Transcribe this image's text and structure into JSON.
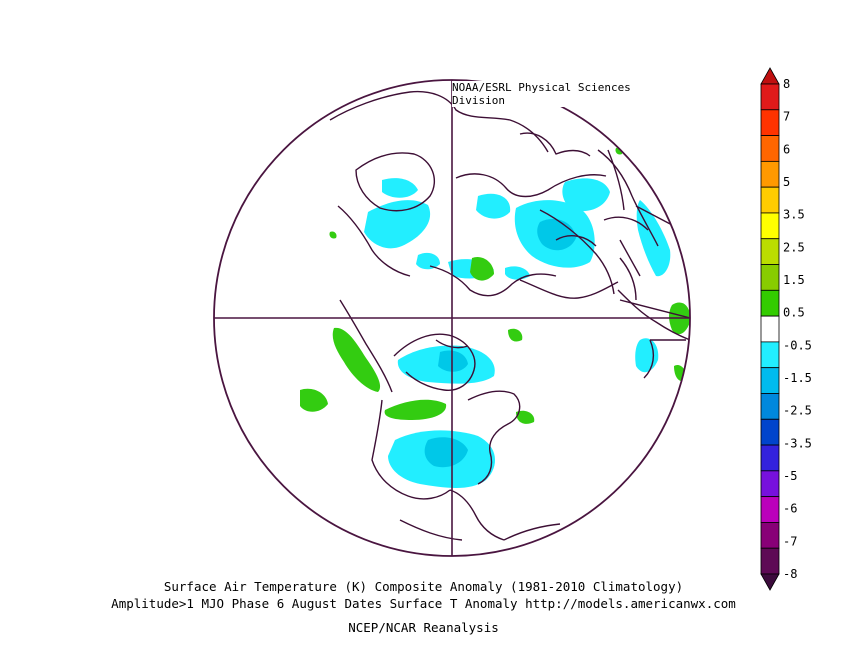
{
  "header": {
    "credit": "NOAA/ESRL Physical Sciences Division"
  },
  "footer": {
    "line1": "Surface Air Temperature (K) Composite Anomaly (1981-2010 Climatology)",
    "line2": "Amplitude>1 MJO Phase 6 August Dates Surface T Anomaly http://models.americanwx.com",
    "line3": "NCEP/NCAR Reanalysis"
  },
  "map": {
    "projection": "north-polar-stereographic",
    "outline_color": "#4a1540",
    "coast_color": "#3d0f35",
    "anomaly_colors": {
      "light_blue": "#22eeff",
      "mid_blue": "#00c8e8",
      "green": "#33cc11"
    }
  },
  "colorbar": {
    "top_arrow_color": "#c01010",
    "bottom_arrow_color": "#3c0b3c",
    "bins": [
      {
        "label": "8",
        "color": "#e01a1a"
      },
      {
        "label": "7",
        "color": "#ff3300"
      },
      {
        "label": "6",
        "color": "#ff6600"
      },
      {
        "label": "5",
        "color": "#ff9900"
      },
      {
        "label": "3.5",
        "color": "#ffcc00"
      },
      {
        "label": "2.5",
        "color": "#ffff00"
      },
      {
        "label": "1.5",
        "color": "#bbdd00"
      },
      {
        "label": "0.5",
        "color": "#88cc00"
      },
      {
        "label": "-0.5",
        "color": "#33cc00"
      },
      {
        "label": "-1.5",
        "color": "#ffffff"
      },
      {
        "label": "-2.5",
        "color": "#22eeff"
      },
      {
        "label": "-3.5",
        "color": "#00bbee"
      },
      {
        "label": "-5",
        "color": "#0088dd"
      },
      {
        "label": "-6",
        "color": "#0044cc"
      },
      {
        "label": "-7",
        "color": "#3322dd"
      },
      {
        "label": "-8",
        "color": "#7711dd"
      },
      {
        "label": "",
        "color": "#bb00bb"
      },
      {
        "label": "",
        "color": "#880077"
      },
      {
        "label": "",
        "color": "#5e0a55"
      }
    ]
  }
}
